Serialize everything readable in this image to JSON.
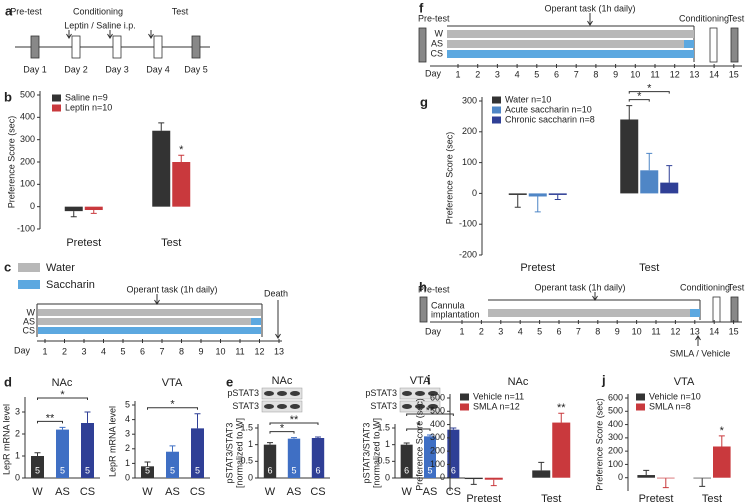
{
  "timelines": {
    "a": {
      "panel": "a",
      "pretest": "Pre-test",
      "conditioning": "Conditioning",
      "test": "Test",
      "injection": "Leptin / Saline i.p.",
      "days": [
        "Day 1",
        "Day 2",
        "Day 3",
        "Day 4",
        "Day 5"
      ]
    },
    "c": {
      "panel": "c",
      "legend": [
        "Water",
        "Saccharin"
      ],
      "task": "Operant task (1h daily)",
      "end": "Death",
      "rows": [
        "W",
        "AS",
        "CS"
      ],
      "axis": "Day",
      "days": [
        1,
        2,
        3,
        4,
        5,
        6,
        7,
        8,
        9,
        10,
        11,
        12,
        13
      ]
    },
    "f": {
      "panel": "f",
      "pretest": "Pre-test",
      "task": "Operant task (1h daily)",
      "conditioning": "Conditioning",
      "test": "Test",
      "rows": [
        "W",
        "AS",
        "CS"
      ],
      "axis": "Day",
      "days": [
        1,
        2,
        3,
        4,
        5,
        6,
        7,
        8,
        9,
        10,
        11,
        12,
        13,
        14,
        15
      ]
    },
    "h": {
      "panel": "h",
      "pretest": "Pre-test",
      "surgery": [
        "Cannula",
        "implantation"
      ],
      "task": "Operant task (1h daily)",
      "conditioning": "Conditioning",
      "test": "Test",
      "axis": "Day",
      "days": [
        1,
        2,
        3,
        4,
        5,
        6,
        7,
        8,
        9,
        10,
        11,
        12,
        13,
        14,
        15
      ],
      "treatment": "SMLA / Vehicle"
    }
  },
  "chart_data": [
    {
      "type": "bar",
      "panel": "b",
      "ylabel": "Preference Score (sec)",
      "categories": [
        "Pretest",
        "Test"
      ],
      "series": [
        {
          "name": "Saline n=9",
          "color": "#333333",
          "values": [
            -20,
            340
          ],
          "errors": [
            25,
            35
          ]
        },
        {
          "name": "Leptin n=10",
          "color": "#c9393d",
          "values": [
            -15,
            200
          ],
          "errors": [
            15,
            30
          ]
        }
      ],
      "ylim": [
        -100,
        500
      ],
      "yticks": [
        -100,
        0,
        100,
        200,
        300,
        400,
        500
      ],
      "legend": "upper left",
      "stars": [
        {
          "category": "Test",
          "series": "Leptin n=10",
          "label": "*"
        }
      ]
    },
    {
      "type": "bar",
      "panel": "g",
      "ylabel": "Preference Score (sec)",
      "categories": [
        "Pretest",
        "Test"
      ],
      "series": [
        {
          "name": "Water n=10",
          "color": "#333333",
          "values": [
            -5,
            240
          ],
          "errors": [
            40,
            45
          ]
        },
        {
          "name": "Acute saccharin n=10",
          "color": "#4f86c6",
          "values": [
            -10,
            75
          ],
          "errors": [
            50,
            55
          ]
        },
        {
          "name": "Chronic saccharin n=8",
          "color": "#2f3f96",
          "values": [
            -5,
            35
          ],
          "errors": [
            15,
            55
          ]
        }
      ],
      "ylim": [
        -200,
        300
      ],
      "yticks": [
        -200,
        -100,
        0,
        100,
        200,
        300
      ],
      "legend": "upper left",
      "brackets": [
        {
          "category": "Test",
          "between": [
            "Water n=10",
            "Acute saccharin n=10"
          ],
          "label": "*"
        },
        {
          "category": "Test",
          "between": [
            "Water n=10",
            "Chronic saccharin n=8"
          ],
          "label": "*"
        }
      ]
    },
    {
      "type": "bar",
      "panel": "d",
      "title": "NAc",
      "ylabel": "LepR mRNA level",
      "categories": [
        "W",
        "AS",
        "CS"
      ],
      "values": [
        1.0,
        2.2,
        2.5
      ],
      "errors": [
        0.15,
        0.1,
        0.5
      ],
      "colors": [
        "#333333",
        "#3f6fc4",
        "#2f3f96"
      ],
      "n": [
        5,
        5,
        5
      ],
      "ylim": [
        0,
        3.5
      ],
      "yticks": [
        0,
        1,
        2,
        3
      ],
      "brackets": [
        {
          "between": [
            "W",
            "AS"
          ],
          "label": "**"
        },
        {
          "between": [
            "W",
            "CS"
          ],
          "label": "*"
        }
      ]
    },
    {
      "type": "bar",
      "title": "VTA",
      "ylabel": "LepR mRNA level",
      "categories": [
        "W",
        "AS",
        "CS"
      ],
      "values": [
        0.8,
        1.8,
        3.4
      ],
      "errors": [
        0.3,
        0.4,
        1.0
      ],
      "colors": [
        "#333333",
        "#3f6fc4",
        "#2f3f96"
      ],
      "n": [
        5,
        5,
        5
      ],
      "ylim": [
        0,
        5
      ],
      "yticks": [
        0,
        1,
        2,
        3,
        4,
        5
      ],
      "brackets": [
        {
          "between": [
            "W",
            "CS"
          ],
          "label": "*"
        }
      ]
    },
    {
      "type": "bar",
      "panel": "e",
      "title": "NAc",
      "ylabel": [
        "pSTAT3/STAT3",
        "[normalized to W]"
      ],
      "categories": [
        "W",
        "AS",
        "CS"
      ],
      "values": [
        1.0,
        1.18,
        1.2
      ],
      "errors": [
        0.06,
        0.03,
        0.03
      ],
      "colors": [
        "#333333",
        "#3f6fc4",
        "#2f3f96"
      ],
      "n": [
        6,
        5,
        6
      ],
      "ylim": [
        0,
        1.5
      ],
      "yticks": [
        0,
        0.5,
        1,
        1.5
      ],
      "blot_labels": [
        "pSTAT3",
        "STAT3"
      ],
      "brackets": [
        {
          "between": [
            "W",
            "AS"
          ],
          "label": "*"
        },
        {
          "between": [
            "W",
            "CS"
          ],
          "label": "**"
        }
      ]
    },
    {
      "type": "bar",
      "title": "VTA",
      "ylabel": [
        "pSTAT3/STAT3",
        "[normalized to W]"
      ],
      "categories": [
        "W",
        "AS",
        "CS"
      ],
      "values": [
        1.0,
        1.25,
        1.45
      ],
      "errors": [
        0.05,
        0.04,
        0.05
      ],
      "colors": [
        "#333333",
        "#3f6fc4",
        "#2f3f96"
      ],
      "n": [
        6,
        5,
        6
      ],
      "ylim": [
        0,
        1.5
      ],
      "yticks": [
        0,
        0.5,
        1,
        1.5
      ],
      "blot_labels": [
        "pSTAT3",
        "STAT3"
      ],
      "brackets": [
        {
          "between": [
            "W",
            "AS"
          ],
          "label": "*"
        },
        {
          "between": [
            "W",
            "CS"
          ],
          "label": "**"
        }
      ]
    },
    {
      "type": "bar",
      "panel": "i",
      "title": "NAc",
      "ylabel": "Preference Score (sec)",
      "categories": [
        "Pretest",
        "Test"
      ],
      "series": [
        {
          "name": "Vehicle n=11",
          "color": "#333333",
          "values": [
            -10,
            55
          ],
          "errors": [
            40,
            60
          ]
        },
        {
          "name": "SMLA n=12",
          "color": "#c9393d",
          "values": [
            -15,
            415
          ],
          "errors": [
            45,
            70
          ]
        }
      ],
      "ylim": [
        -100,
        600
      ],
      "yticks": [
        0,
        100,
        200,
        300,
        400,
        500,
        600
      ],
      "legend": "upper left",
      "stars": [
        {
          "category": "Test",
          "series": "SMLA n=12",
          "label": "**"
        }
      ]
    },
    {
      "type": "bar",
      "panel": "j",
      "title": "VTA",
      "ylabel": "Preference Score (sec)",
      "categories": [
        "Pretest",
        "Test"
      ],
      "series": [
        {
          "name": "Vehicle n=10",
          "color": "#333333",
          "values": [
            20,
            -5
          ],
          "errors": [
            35,
            60
          ]
        },
        {
          "name": "SMLA n=8",
          "color": "#c9393d",
          "values": [
            -5,
            235
          ],
          "errors": [
            70,
            80
          ]
        }
      ],
      "ylim": [
        -100,
        600
      ],
      "yticks": [
        0,
        100,
        200,
        300,
        400,
        500,
        600
      ],
      "legend": "upper left",
      "stars": [
        {
          "category": "Test",
          "series": "SMLA n=8",
          "label": "*"
        }
      ]
    }
  ]
}
